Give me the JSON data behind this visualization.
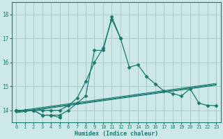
{
  "xlabel": "Humidex (Indice chaleur)",
  "bg_color": "#cce8e8",
  "line_color": "#1a7a6e",
  "grid_color": "#aacccc",
  "x_values": [
    0,
    1,
    2,
    3,
    4,
    5,
    6,
    7,
    8,
    9,
    10,
    11,
    12,
    13,
    14,
    15,
    16,
    17,
    18,
    19,
    20,
    21,
    22,
    23
  ],
  "main_curve": [
    14.0,
    14.0,
    14.0,
    14.0,
    14.0,
    14.0,
    14.2,
    14.5,
    15.2,
    16.0,
    16.6,
    17.8,
    17.0,
    15.8,
    15.9,
    15.4,
    15.1,
    14.8,
    14.7,
    14.6,
    14.9,
    14.3,
    14.2,
    14.2
  ],
  "curve2": [
    14.0,
    14.0,
    14.0,
    13.8,
    13.8,
    13.8,
    14.0,
    14.3,
    14.6,
    16.5,
    16.5,
    17.9,
    17.0,
    null,
    null,
    null,
    null,
    null,
    null,
    null,
    null,
    null,
    null,
    null
  ],
  "curve3": [
    14.0,
    14.0,
    14.0,
    13.8,
    13.8,
    13.7,
    null,
    null,
    null,
    null,
    null,
    null,
    null,
    null,
    null,
    null,
    null,
    null,
    null,
    null,
    null,
    null,
    null,
    null
  ],
  "reg1": [
    13.97,
    14.02,
    14.07,
    14.12,
    14.17,
    14.22,
    14.27,
    14.32,
    14.37,
    14.42,
    14.47,
    14.52,
    14.57,
    14.62,
    14.67,
    14.72,
    14.77,
    14.82,
    14.87,
    14.92,
    14.97,
    15.02,
    15.07,
    15.12
  ],
  "reg2": [
    13.93,
    13.98,
    14.03,
    14.08,
    14.13,
    14.18,
    14.23,
    14.28,
    14.33,
    14.38,
    14.43,
    14.48,
    14.53,
    14.58,
    14.63,
    14.68,
    14.73,
    14.78,
    14.83,
    14.88,
    14.93,
    14.98,
    15.03,
    15.08
  ],
  "reg3": [
    13.9,
    13.95,
    14.0,
    14.05,
    14.1,
    14.15,
    14.2,
    14.25,
    14.3,
    14.35,
    14.4,
    14.45,
    14.5,
    14.55,
    14.6,
    14.65,
    14.7,
    14.75,
    14.8,
    14.85,
    14.9,
    14.95,
    15.0,
    15.05
  ],
  "ylim": [
    13.5,
    18.5
  ],
  "yticks": [
    14,
    15,
    16,
    17,
    18
  ],
  "xlim": [
    -0.5,
    23.5
  ],
  "xticks": [
    0,
    1,
    2,
    3,
    4,
    5,
    6,
    7,
    8,
    9,
    10,
    11,
    12,
    13,
    14,
    15,
    16,
    17,
    18,
    19,
    20,
    21,
    22,
    23
  ]
}
